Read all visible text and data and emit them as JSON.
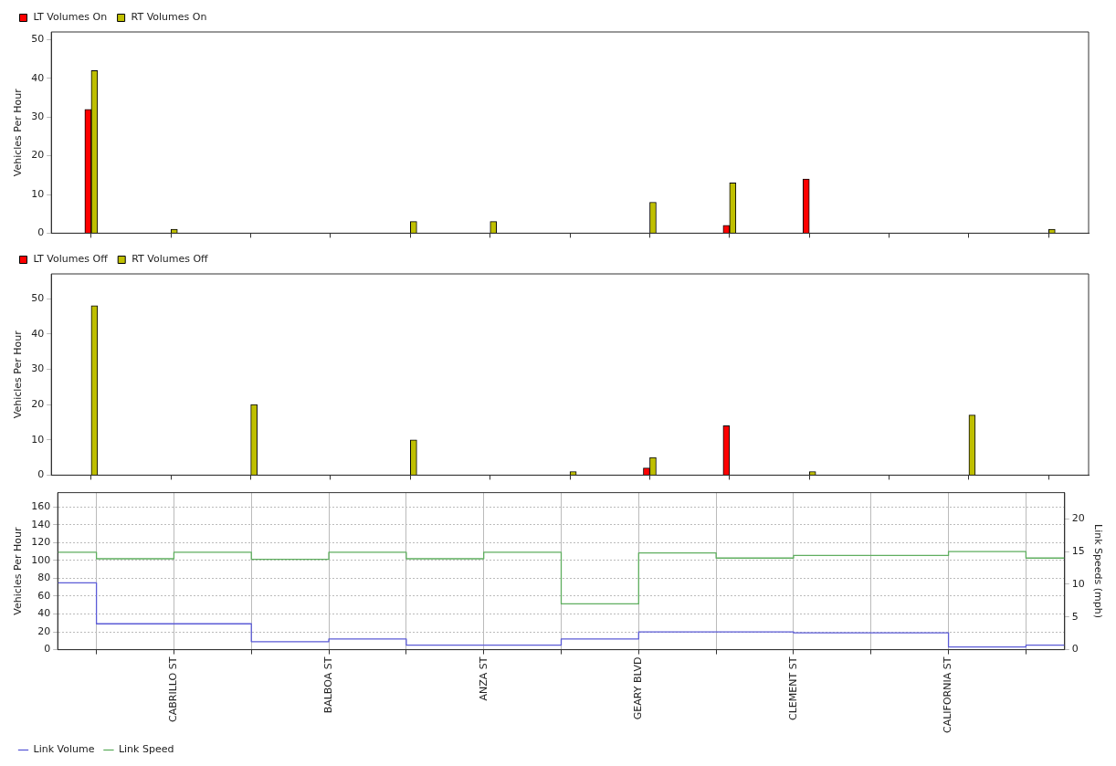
{
  "chart_data": [
    {
      "type": "bar",
      "ylabel": "Vehicles Per Hour",
      "categories": [
        null,
        null,
        null,
        null,
        null,
        null,
        null,
        null,
        null,
        null,
        null,
        null,
        null
      ],
      "ylim": [
        0,
        52
      ],
      "yticks": [
        0,
        10,
        20,
        30,
        40,
        50
      ],
      "tick_labels": "y",
      "legend": "top left",
      "series": [
        {
          "name": "LT Volumes On",
          "color": "#ff0000",
          "values": [
            32,
            null,
            null,
            null,
            null,
            null,
            null,
            null,
            2,
            14,
            null,
            null,
            null
          ]
        },
        {
          "name": "RT Volumes On",
          "color": "#bfbf00",
          "values": [
            42,
            1,
            null,
            null,
            3,
            3,
            null,
            8,
            13,
            null,
            null,
            null,
            1
          ]
        }
      ]
    },
    {
      "type": "bar",
      "ylabel": "Vehicles Per Hour",
      "categories": [
        null,
        null,
        null,
        null,
        null,
        null,
        null,
        null,
        null,
        null,
        null,
        null,
        null
      ],
      "ylim": [
        0,
        57
      ],
      "yticks": [
        0,
        10,
        20,
        30,
        40,
        50
      ],
      "tick_labels": "y",
      "legend": "top left",
      "series": [
        {
          "name": "LT Volumes Off",
          "color": "#ff0000",
          "values": [
            null,
            null,
            null,
            null,
            null,
            null,
            null,
            2,
            14,
            null,
            null,
            null,
            null
          ]
        },
        {
          "name": "RT Volumes Off",
          "color": "#bfbf00",
          "values": [
            48,
            null,
            20,
            null,
            10,
            null,
            1,
            5,
            null,
            1,
            null,
            17,
            null
          ]
        }
      ]
    },
    {
      "type": "step",
      "ylabel": "Vehicles Per Hour",
      "y2label": "Link Speeds (mph)",
      "categories": [
        null,
        null,
        null,
        "CABRILLO ST",
        null,
        null,
        null,
        "BALBOA ST",
        null,
        null,
        null,
        "ANZA ST",
        null,
        null,
        null,
        "GEARY BLVD",
        null,
        null,
        null,
        "CLEMENT ST",
        null,
        null,
        null,
        "CALIFORNIA ST",
        null,
        null,
        null
      ],
      "ylim": [
        0,
        176
      ],
      "yticks": [
        0,
        20,
        40,
        60,
        80,
        100,
        120,
        140,
        160
      ],
      "y2lim": [
        0,
        24
      ],
      "y2ticks": [
        0,
        5,
        10,
        15,
        20
      ],
      "grid": true,
      "legend": "bottom left",
      "marker": "none",
      "line_style": "solid",
      "series": [
        {
          "name": "Link Volume",
          "color": "#5b5bd6",
          "values": [
            75,
            29,
            29,
            29,
            29,
            9,
            9,
            12,
            12,
            5,
            5,
            5,
            5,
            12,
            12,
            20,
            20,
            20,
            20,
            19,
            19,
            19,
            19,
            3,
            3,
            5,
            5
          ]
        },
        {
          "name": "Link Speed",
          "color": "#5fae5f",
          "axis": "y2",
          "values": [
            14.9,
            13.9,
            13.9,
            14.9,
            14.9,
            13.8,
            13.8,
            14.9,
            14.9,
            13.9,
            13.9,
            14.9,
            14.9,
            7.0,
            7.0,
            14.8,
            14.8,
            14.0,
            14.0,
            14.4,
            14.4,
            14.4,
            14.4,
            15.0,
            15.0,
            14.0,
            14.0
          ]
        }
      ]
    }
  ]
}
